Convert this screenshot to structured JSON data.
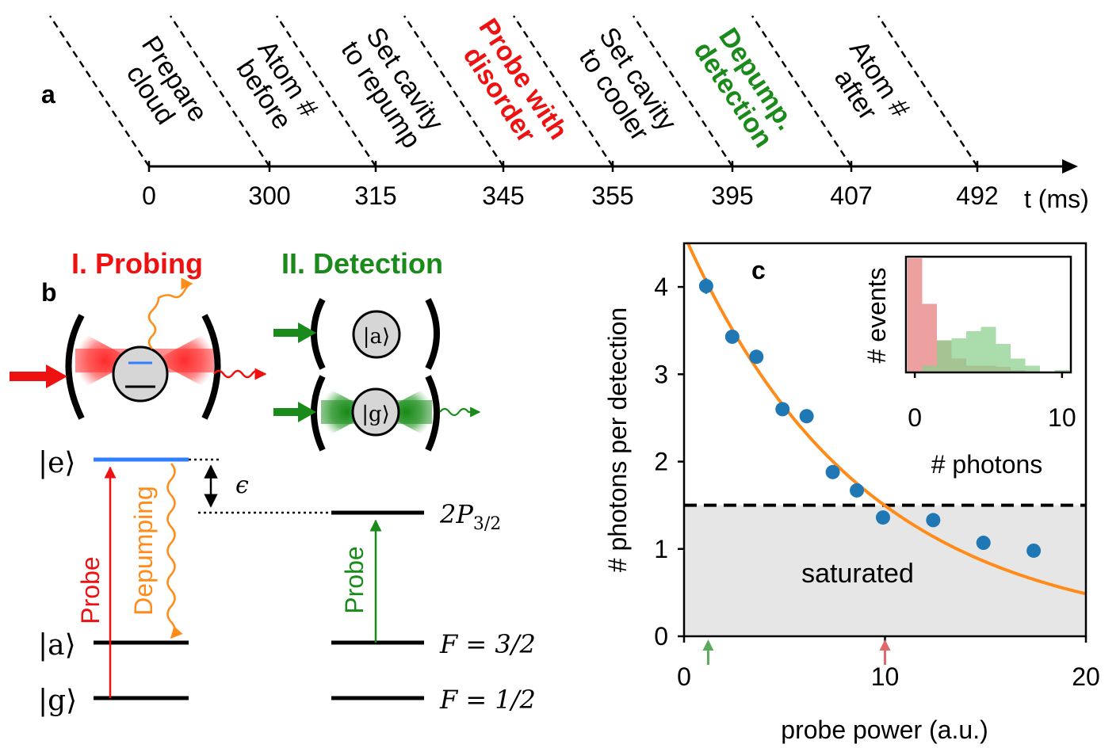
{
  "panels": {
    "a": "a",
    "b": "b",
    "c": "c"
  },
  "timeline": {
    "axis_label": "t (ms)",
    "ticks": [
      "0",
      "300",
      "315",
      "345",
      "355",
      "395",
      "407",
      "492"
    ],
    "steps": [
      {
        "line1": "Prepare",
        "line2": "cloud",
        "color": "#000000"
      },
      {
        "line1": "Atom #",
        "line2": "before",
        "color": "#000000"
      },
      {
        "line1": "Set cavity",
        "line2": "to repump",
        "color": "#000000"
      },
      {
        "line1": "Probe with",
        "line2": "disorder",
        "color": "#ee1111"
      },
      {
        "line1": "Set cavity",
        "line2": "to cooler",
        "color": "#000000"
      },
      {
        "line1": "Depump.",
        "line2": "detection",
        "color": "#1a8a1a"
      },
      {
        "line1": "Atom #",
        "line2": "after",
        "color": "#000000"
      }
    ]
  },
  "levels": {
    "probing_title": "I. Probing",
    "detection_title": "II. Detection",
    "ket_e": "|e⟩",
    "ket_a": "|a⟩",
    "ket_g": "|g⟩",
    "epsilon": "ϵ",
    "p32": "2P",
    "p32_sub": "3/2",
    "f32": "F = 3/2",
    "f12": "F = 1/2",
    "probe_red": "Probe",
    "depumping": "Depumping",
    "probe_green": "Probe",
    "cavity_ket_a": "|a⟩",
    "cavity_ket_g": "|g⟩"
  },
  "colors": {
    "red": "#ee1111",
    "green": "#1a8a1a",
    "orange": "#ff8c1a",
    "blue": "#1f77b4",
    "excited_level": "#2f7fff",
    "shade": "#e6e6e6",
    "hist_red": "#e58080",
    "hist_green": "#8fd08f"
  },
  "chart_data": [
    {
      "type": "scatter",
      "xlabel": "probe power (a.u.)",
      "ylabel": "# photons per detection",
      "xlim": [
        0,
        20
      ],
      "ylim": [
        0,
        4.5
      ],
      "xticks": [
        0,
        10,
        20
      ],
      "yticks": [
        0,
        1,
        2,
        3,
        4
      ],
      "points": [
        {
          "x": 1.1,
          "y": 4.01,
          "err": 0.09
        },
        {
          "x": 2.4,
          "y": 3.43,
          "err": 0.06
        },
        {
          "x": 3.6,
          "y": 3.2,
          "err": 0.08
        },
        {
          "x": 4.9,
          "y": 2.6,
          "err": 0.05
        },
        {
          "x": 6.1,
          "y": 2.52,
          "err": 0.08
        },
        {
          "x": 7.4,
          "y": 1.88,
          "err": 0.05
        },
        {
          "x": 8.6,
          "y": 1.67,
          "err": 0.05
        },
        {
          "x": 9.9,
          "y": 1.36,
          "err": 0.04
        },
        {
          "x": 12.4,
          "y": 1.33,
          "err": 0.04
        },
        {
          "x": 14.9,
          "y": 1.07,
          "err": 0.03
        },
        {
          "x": 17.4,
          "y": 0.98,
          "err": 0.03
        }
      ],
      "fit": {
        "form": "A*exp(-x/tau)",
        "A": 4.6,
        "tau": 8.9
      },
      "saturation_level": 1.5,
      "shaded_label": "saturated",
      "arrow_markers": [
        {
          "x": 1.2,
          "color": "green"
        },
        {
          "x": 10,
          "color": "red"
        }
      ]
    },
    {
      "type": "bar",
      "xlabel": "# photons",
      "ylabel": "# events",
      "xlim": [
        -0.6,
        10.6
      ],
      "xticks": [
        0,
        10
      ],
      "bin_edges": [
        -0.5,
        0.5,
        1.5,
        2.5,
        3.5,
        4.5,
        5.5,
        6.5,
        7.5,
        8.5,
        9.5,
        10.5
      ],
      "series": [
        {
          "color": "red",
          "values": [
            1.0,
            0.6,
            0.28,
            0.12,
            0.06,
            0.06,
            0.05,
            0.02,
            0.0,
            0.0,
            0.0
          ]
        },
        {
          "color": "green",
          "values": [
            0.0,
            0.06,
            0.28,
            0.3,
            0.36,
            0.4,
            0.25,
            0.12,
            0.06,
            0.0,
            0.02
          ]
        }
      ]
    }
  ]
}
